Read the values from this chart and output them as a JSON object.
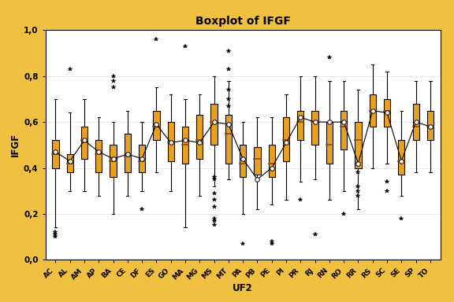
{
  "title": "Boxplot of IFGF",
  "xlabel": "UF2",
  "ylabel": "IFGF",
  "background_color": "#F0C040",
  "plot_background": "#FFFFFF",
  "box_color": "#E8A020",
  "median_color": "#8B4513",
  "whisker_color": "#000000",
  "flier_color": "#000000",
  "mean_color": "#000000",
  "line_color": "#000000",
  "ylim": [
    0.0,
    1.0
  ],
  "yticks": [
    0.0,
    0.2,
    0.4,
    0.6,
    0.8,
    1.0
  ],
  "yticklabels": [
    "0,0",
    "0,2",
    "0,4",
    "0,6",
    "0,8",
    "1,0"
  ],
  "categories": [
    "AC",
    "AL",
    "AM",
    "AP",
    "BA",
    "CE",
    "DF",
    "ES",
    "GO",
    "MA",
    "MG",
    "MS",
    "MT",
    "PA",
    "PB",
    "PE",
    "PI",
    "PR",
    "RJ",
    "RN",
    "RO",
    "RR",
    "RS",
    "SC",
    "SE",
    "SP",
    "TO"
  ],
  "box_data": {
    "AC": {
      "q1": 0.4,
      "median": 0.46,
      "q3": 0.52,
      "mean": 0.47,
      "whislo": 0.14,
      "whishi": 0.7,
      "fliers": [
        0.1,
        0.11,
        0.12
      ]
    },
    "AL": {
      "q1": 0.38,
      "median": 0.42,
      "q3": 0.46,
      "mean": 0.43,
      "whislo": 0.3,
      "whishi": 0.64,
      "fliers": [
        0.83
      ]
    },
    "AM": {
      "q1": 0.44,
      "median": 0.52,
      "q3": 0.58,
      "mean": 0.52,
      "whislo": 0.3,
      "whishi": 0.7,
      "fliers": []
    },
    "AP": {
      "q1": 0.38,
      "median": 0.46,
      "q3": 0.52,
      "mean": 0.47,
      "whislo": 0.28,
      "whishi": 0.62,
      "fliers": []
    },
    "BA": {
      "q1": 0.36,
      "median": 0.43,
      "q3": 0.5,
      "mean": 0.44,
      "whislo": 0.2,
      "whishi": 0.6,
      "fliers": [
        0.75,
        0.78,
        0.8
      ]
    },
    "CE": {
      "q1": 0.38,
      "median": 0.45,
      "q3": 0.55,
      "mean": 0.46,
      "whislo": 0.28,
      "whishi": 0.65,
      "fliers": []
    },
    "DF": {
      "q1": 0.38,
      "median": 0.43,
      "q3": 0.5,
      "mean": 0.44,
      "whislo": 0.3,
      "whishi": 0.6,
      "fliers": [
        0.22
      ]
    },
    "ES": {
      "q1": 0.52,
      "median": 0.58,
      "q3": 0.65,
      "mean": 0.59,
      "whislo": 0.38,
      "whishi": 0.75,
      "fliers": [
        0.96
      ]
    },
    "GO": {
      "q1": 0.43,
      "median": 0.51,
      "q3": 0.6,
      "mean": 0.51,
      "whislo": 0.3,
      "whishi": 0.72,
      "fliers": []
    },
    "MA": {
      "q1": 0.42,
      "median": 0.5,
      "q3": 0.58,
      "mean": 0.52,
      "whislo": 0.14,
      "whishi": 0.7,
      "fliers": [
        0.93
      ]
    },
    "MG": {
      "q1": 0.44,
      "median": 0.52,
      "q3": 0.63,
      "mean": 0.51,
      "whislo": 0.28,
      "whishi": 0.72,
      "fliers": []
    },
    "MS": {
      "q1": 0.5,
      "median": 0.6,
      "q3": 0.68,
      "mean": 0.6,
      "whislo": 0.32,
      "whishi": 0.8,
      "fliers": [
        0.23,
        0.26,
        0.15,
        0.17,
        0.18,
        0.29,
        0.35,
        0.36
      ]
    },
    "MT": {
      "q1": 0.42,
      "median": 0.55,
      "q3": 0.63,
      "mean": 0.59,
      "whislo": 0.35,
      "whishi": 0.78,
      "fliers": [
        0.91,
        0.83,
        0.74,
        0.7,
        0.67
      ]
    },
    "PA": {
      "q1": 0.36,
      "median": 0.42,
      "q3": 0.5,
      "mean": 0.44,
      "whislo": 0.2,
      "whishi": 0.6,
      "fliers": [
        0.07
      ]
    },
    "PB": {
      "q1": 0.37,
      "median": 0.44,
      "q3": 0.49,
      "mean": 0.35,
      "whislo": 0.22,
      "whishi": 0.62,
      "fliers": []
    },
    "PE": {
      "q1": 0.36,
      "median": 0.42,
      "q3": 0.5,
      "mean": 0.4,
      "whislo": 0.24,
      "whishi": 0.62,
      "fliers": [
        0.07,
        0.08
      ]
    },
    "PI": {
      "q1": 0.43,
      "median": 0.52,
      "q3": 0.62,
      "mean": 0.51,
      "whislo": 0.26,
      "whishi": 0.72,
      "fliers": []
    },
    "PR": {
      "q1": 0.52,
      "median": 0.6,
      "q3": 0.65,
      "mean": 0.62,
      "whislo": 0.34,
      "whishi": 0.8,
      "fliers": [
        0.26
      ]
    },
    "RJ": {
      "q1": 0.5,
      "median": 0.6,
      "q3": 0.65,
      "mean": 0.6,
      "whislo": 0.35,
      "whishi": 0.8,
      "fliers": [
        0.11
      ]
    },
    "RN": {
      "q1": 0.42,
      "median": 0.5,
      "q3": 0.6,
      "mean": 0.6,
      "whislo": 0.26,
      "whishi": 0.78,
      "fliers": [
        0.88
      ]
    },
    "RO": {
      "q1": 0.48,
      "median": 0.58,
      "q3": 0.65,
      "mean": 0.6,
      "whislo": 0.3,
      "whishi": 0.78,
      "fliers": [
        0.2
      ]
    },
    "RR": {
      "q1": 0.4,
      "median": 0.52,
      "q3": 0.6,
      "mean": 0.42,
      "whislo": 0.22,
      "whishi": 0.74,
      "fliers": [
        0.38,
        0.3,
        0.28,
        0.32
      ]
    },
    "RS": {
      "q1": 0.58,
      "median": 0.65,
      "q3": 0.72,
      "mean": 0.65,
      "whislo": 0.4,
      "whishi": 0.85,
      "fliers": []
    },
    "SC": {
      "q1": 0.58,
      "median": 0.65,
      "q3": 0.7,
      "mean": 0.64,
      "whislo": 0.42,
      "whishi": 0.82,
      "fliers": [
        0.3,
        0.34
      ]
    },
    "SE": {
      "q1": 0.37,
      "median": 0.43,
      "q3": 0.52,
      "mean": 0.43,
      "whislo": 0.28,
      "whishi": 0.65,
      "fliers": [
        0.18
      ]
    },
    "SP": {
      "q1": 0.52,
      "median": 0.58,
      "q3": 0.68,
      "mean": 0.6,
      "whislo": 0.38,
      "whishi": 0.78,
      "fliers": []
    },
    "TO": {
      "q1": 0.52,
      "median": 0.58,
      "q3": 0.65,
      "mean": 0.58,
      "whislo": 0.38,
      "whishi": 0.78,
      "fliers": []
    }
  }
}
